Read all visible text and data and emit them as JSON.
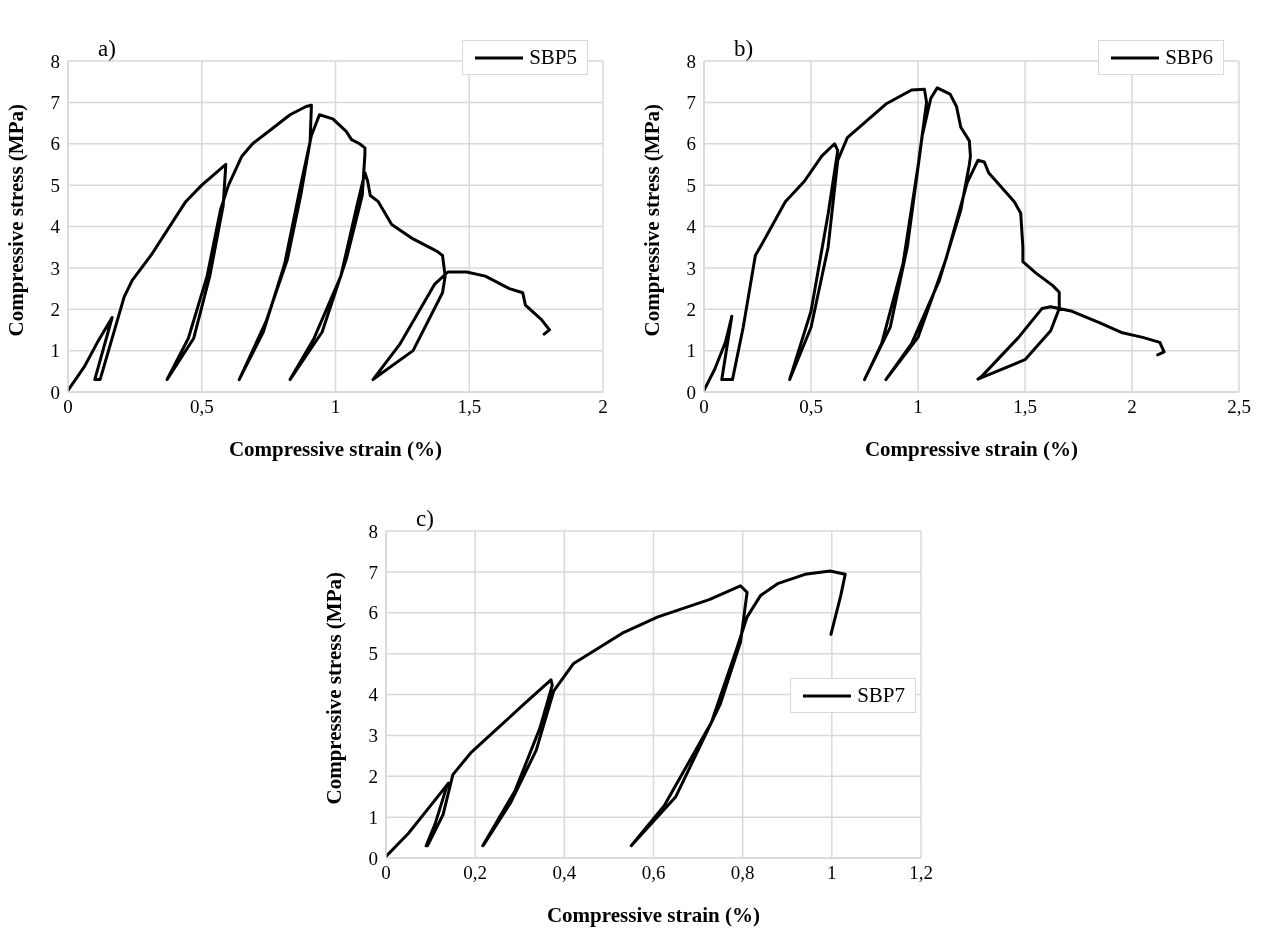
{
  "chart_data": [
    {
      "type": "line",
      "annotations": [
        "a)"
      ],
      "xlabel": "Compressive strain (%)",
      "ylabel": "Compressive stress  (MPa)",
      "xlim": [
        0,
        2
      ],
      "ylim": [
        0,
        8
      ],
      "xticks": [
        0,
        {
          "value": 0.5,
          "label": "0,5"
        },
        1,
        {
          "value": 1.5,
          "label": "1,5"
        },
        2
      ],
      "yticks": [
        0,
        1,
        2,
        3,
        4,
        5,
        6,
        7,
        8
      ],
      "grid": true,
      "legend": "top right",
      "series": [
        {
          "name": "SBP5",
          "color": "#000000",
          "x": [
            0,
            0.06,
            0.11,
            0.165,
            0.1,
            0.12,
            0.21,
            0.24,
            0.31,
            0.37,
            0.44,
            0.5,
            0.59,
            0.58,
            0.53,
            0.47,
            0.37,
            0.45,
            0.52,
            0.57,
            0.6,
            0.65,
            0.69,
            0.77,
            0.83,
            0.89,
            0.91,
            0.905,
            0.87,
            0.82,
            0.74,
            0.64,
            0.73,
            0.81,
            0.87,
            0.91,
            0.94,
            0.99,
            1.04,
            1.06,
            1.09,
            1.11,
            1.11,
            1.1,
            1.04,
            0.95,
            0.83,
            0.92,
            1.02,
            1.08,
            1.11,
            1.12,
            1.13,
            1.16,
            1.21,
            1.29,
            1.38,
            1.4,
            1.41,
            1.4,
            1.29,
            1.14,
            1.24,
            1.37,
            1.42,
            1.49,
            1.56,
            1.65,
            1.7,
            1.71,
            1.77,
            1.8,
            1.78
          ],
          "values": [
            0.04,
            0.6,
            1.2,
            1.8,
            0.3,
            0.3,
            2.3,
            2.7,
            3.3,
            3.9,
            4.6,
            5.0,
            5.5,
            4.5,
            2.8,
            1.3,
            0.3,
            1.3,
            2.8,
            4.4,
            5.0,
            5.7,
            6.0,
            6.4,
            6.7,
            6.9,
            6.93,
            6.05,
            4.75,
            3.2,
            1.7,
            0.3,
            1.45,
            3.1,
            5.0,
            6.2,
            6.7,
            6.6,
            6.3,
            6.1,
            6.0,
            5.9,
            5.75,
            4.75,
            3.2,
            1.45,
            0.3,
            1.3,
            2.8,
            4.5,
            5.3,
            5.1,
            4.75,
            4.6,
            4.05,
            3.7,
            3.4,
            3.3,
            2.8,
            2.4,
            1.0,
            0.3,
            1.15,
            2.6,
            2.9,
            2.9,
            2.8,
            2.5,
            2.4,
            2.1,
            1.75,
            1.5,
            1.4
          ]
        }
      ]
    },
    {
      "type": "line",
      "annotations": [
        "b)"
      ],
      "xlabel": "Compressive strain (%)",
      "ylabel": "Compressive stress  (MPa)",
      "xlim": [
        0,
        2.5
      ],
      "ylim": [
        0,
        8
      ],
      "xticks": [
        0,
        {
          "value": 0.5,
          "label": "0,5"
        },
        1,
        {
          "value": 1.5,
          "label": "1,5"
        },
        2,
        {
          "value": 2.5,
          "label": "2,5"
        }
      ],
      "yticks": [
        0,
        1,
        2,
        3,
        4,
        5,
        6,
        7,
        8
      ],
      "grid": true,
      "legend": "top right",
      "series": [
        {
          "name": "SBP6",
          "color": "#000000",
          "x": [
            0,
            0.05,
            0.1,
            0.13,
            0.083,
            0.133,
            0.183,
            0.24,
            0.28,
            0.38,
            0.47,
            0.55,
            0.61,
            0.625,
            0.58,
            0.5,
            0.4,
            0.5,
            0.58,
            0.625,
            0.67,
            0.85,
            0.97,
            1.03,
            1.04,
            1.0,
            0.93,
            0.83,
            0.75,
            0.87,
            0.95,
            1.02,
            1.06,
            1.09,
            1.15,
            1.18,
            1.2,
            1.24,
            1.245,
            1.24,
            1.2,
            1.1,
            0.97,
            0.85,
            1.0,
            1.13,
            1.23,
            1.28,
            1.31,
            1.33,
            1.45,
            1.48,
            1.49,
            1.49,
            1.55,
            1.63,
            1.66,
            1.66,
            1.62,
            1.5,
            1.28,
            1.3,
            1.47,
            1.58,
            1.62,
            1.72,
            1.85,
            1.95,
            2.05,
            2.13,
            2.15,
            2.12
          ],
          "values": [
            0.04,
            0.55,
            1.2,
            1.83,
            0.3,
            0.3,
            1.56,
            3.3,
            3.66,
            4.6,
            5.1,
            5.7,
            6.0,
            5.84,
            4.3,
            1.95,
            0.3,
            1.56,
            3.5,
            5.6,
            6.15,
            6.96,
            7.3,
            7.32,
            7.0,
            5.45,
            3.1,
            1.17,
            0.3,
            1.56,
            3.5,
            6.2,
            7.1,
            7.35,
            7.2,
            6.9,
            6.4,
            6.07,
            5.7,
            5.5,
            4.4,
            2.7,
            1.17,
            0.3,
            1.32,
            3.2,
            5.06,
            5.6,
            5.56,
            5.3,
            4.6,
            4.32,
            3.5,
            3.15,
            2.88,
            2.57,
            2.41,
            2.02,
            1.48,
            0.78,
            0.31,
            0.39,
            1.32,
            2.02,
            2.06,
            1.95,
            1.67,
            1.44,
            1.32,
            1.2,
            0.97,
            0.9
          ]
        }
      ]
    },
    {
      "type": "line",
      "annotations": [
        "c)"
      ],
      "xlabel": "Compressive strain (%)",
      "ylabel": "Compressive stress  (MPa)",
      "xlim": [
        0,
        1.2
      ],
      "ylim": [
        0,
        8
      ],
      "xticks": [
        0,
        {
          "value": 0.2,
          "label": "0,2"
        },
        {
          "value": 0.4,
          "label": "0,4"
        },
        {
          "value": 0.6,
          "label": "0,6"
        },
        {
          "value": 0.8,
          "label": "0,8"
        },
        1,
        {
          "value": 1.2,
          "label": "1,2"
        }
      ],
      "yticks": [
        0,
        1,
        2,
        3,
        4,
        5,
        6,
        7,
        8
      ],
      "grid": true,
      "legend": "right",
      "series": [
        {
          "name": "SBP7",
          "color": "#000000",
          "x": [
            0,
            0.05,
            0.1,
            0.14,
            0.136,
            0.11,
            0.09,
            0.093,
            0.128,
            0.15,
            0.19,
            0.25,
            0.31,
            0.37,
            0.373,
            0.345,
            0.29,
            0.217,
            0.22,
            0.28,
            0.337,
            0.376,
            0.42,
            0.53,
            0.61,
            0.725,
            0.795,
            0.81,
            0.795,
            0.75,
            0.65,
            0.55,
            0.624,
            0.73,
            0.787,
            0.81,
            0.84,
            0.88,
            0.94,
            0.996,
            1.03,
            1.02,
            0.998
          ],
          "values": [
            0.04,
            0.6,
            1.28,
            1.83,
            1.74,
            0.83,
            0.3,
            0.3,
            1.06,
            2.04,
            2.57,
            3.17,
            3.77,
            4.36,
            4.23,
            3.17,
            1.66,
            0.3,
            0.34,
            1.36,
            2.64,
            4.08,
            4.75,
            5.5,
            5.9,
            6.32,
            6.66,
            6.5,
            5.28,
            3.77,
            1.5,
            0.3,
            1.28,
            3.32,
            5.13,
            5.9,
            6.42,
            6.72,
            6.94,
            7.02,
            6.94,
            6.42,
            5.47
          ]
        }
      ]
    }
  ]
}
